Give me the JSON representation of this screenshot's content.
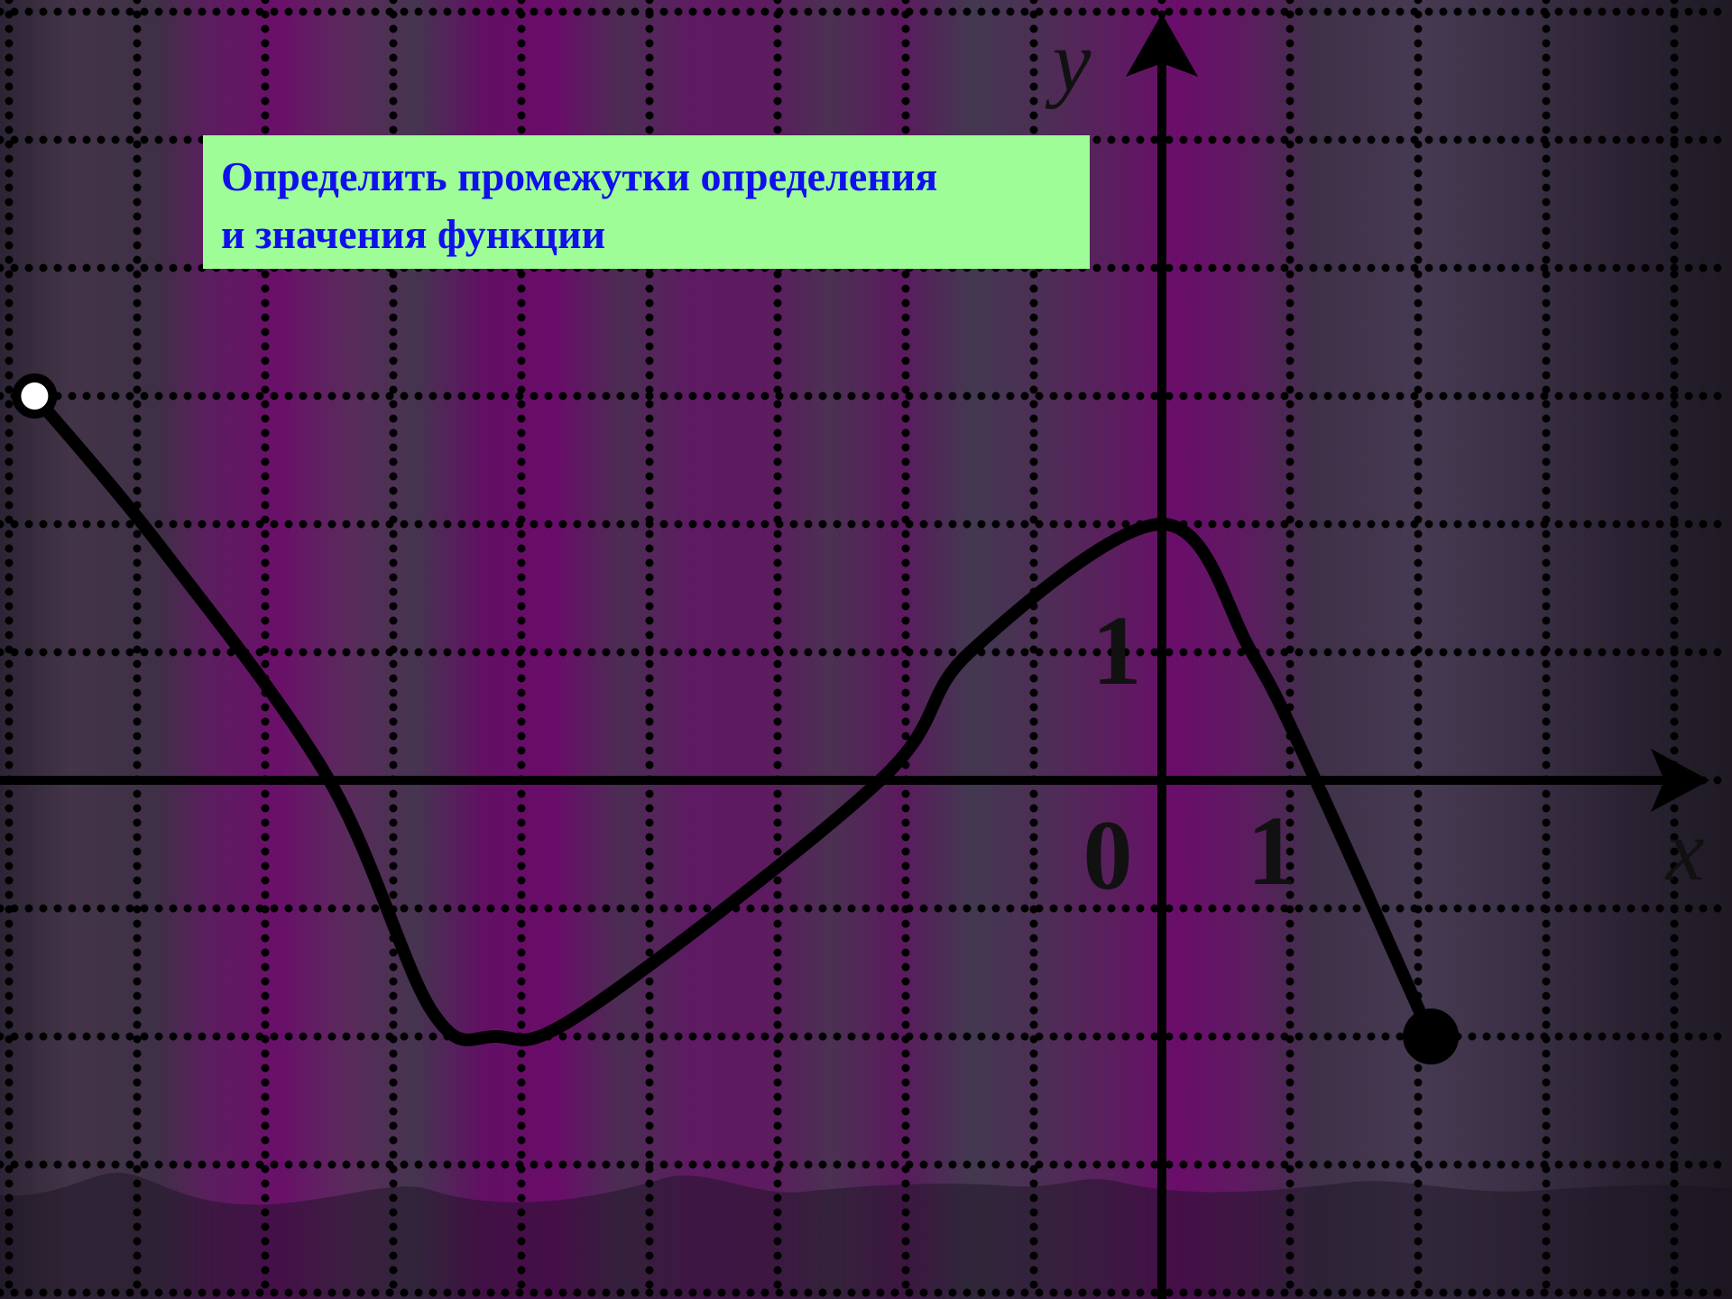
{
  "task": {
    "line1": "Определить промежутки определения",
    "line2": "и значения функции"
  },
  "colors": {
    "task_box_bg": "#9efd96",
    "task_text": "#1010ee",
    "curve": "#000000",
    "grid_dots": "#000000"
  },
  "chart_data": {
    "type": "line",
    "title": "",
    "xlabel": "x",
    "ylabel": "y",
    "origin_label": "0",
    "x_unit_label": "1",
    "y_unit_label": "1",
    "xlim": [
      -9,
      4
    ],
    "ylim": [
      -4,
      6
    ],
    "grid": true,
    "series": [
      {
        "values_x": [
          -8.8,
          -7.8,
          -6.5,
          -5.7,
          -5.2,
          -4.5,
          -2.2,
          -1.5,
          0,
          0.7,
          1.2,
          2.1
        ],
        "values_y": [
          3,
          1.8,
          0,
          -1.8,
          -2,
          -1.8,
          0,
          1,
          2,
          1,
          0,
          -2
        ],
        "start_point": {
          "x": -8.8,
          "y": 3,
          "filled": false
        },
        "end_point": {
          "x": 2.1,
          "y": -2,
          "filled": true
        }
      }
    ]
  }
}
